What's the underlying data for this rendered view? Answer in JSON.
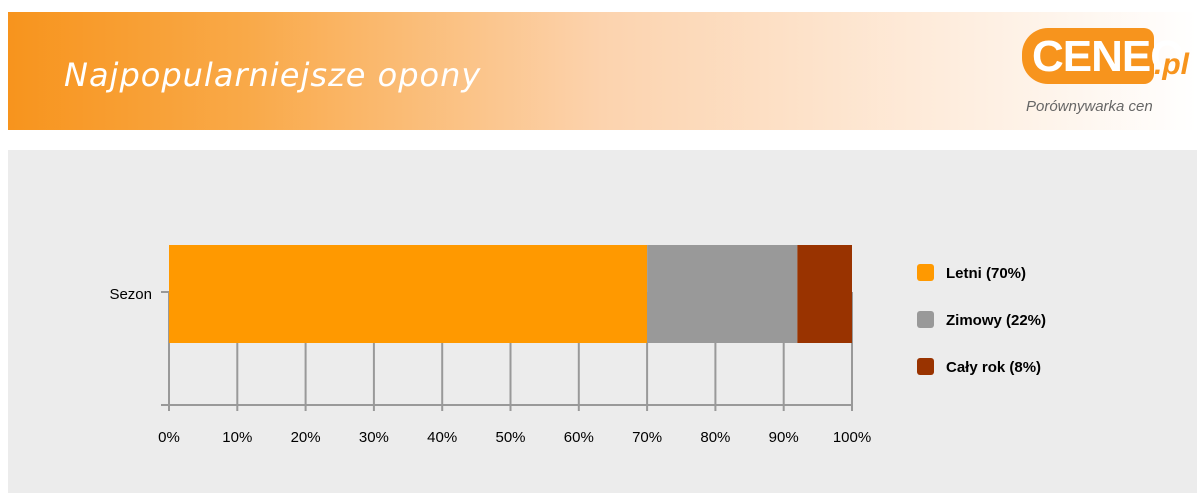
{
  "header": {
    "title": "Najpopularniejsze opony",
    "logo": {
      "brand": "CENEO",
      "suffix": ".pl",
      "tagline": "Porównywarka cen"
    }
  },
  "chart_data": {
    "type": "bar",
    "orientation": "horizontal",
    "stacked": true,
    "categories": [
      "Sezon"
    ],
    "series": [
      {
        "name": "Letni (70%)",
        "values": [
          70
        ],
        "color": "#ff9900"
      },
      {
        "name": "Zimowy (22%)",
        "values": [
          22
        ],
        "color": "#999999"
      },
      {
        "name": "Cały rok (8%)",
        "values": [
          8
        ],
        "color": "#993300"
      }
    ],
    "x_ticks": [
      "0%",
      "10%",
      "20%",
      "30%",
      "40%",
      "50%",
      "60%",
      "70%",
      "80%",
      "90%",
      "100%"
    ],
    "xlim": [
      0,
      100
    ],
    "grid": true,
    "legend_position": "right"
  }
}
